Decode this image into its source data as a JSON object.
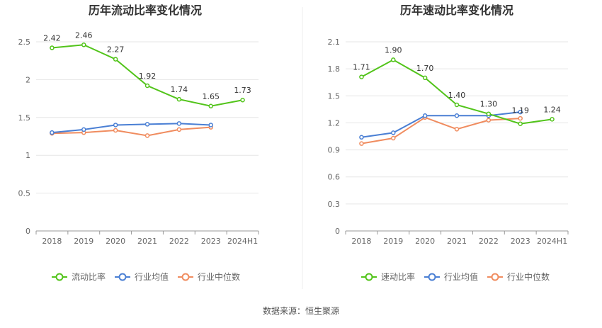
{
  "source_label": "数据来源：恒生聚源",
  "chart_data": [
    {
      "type": "line",
      "title": "历年流动比率变化情况",
      "categories": [
        "2018",
        "2019",
        "2020",
        "2021",
        "2022",
        "2023",
        "2024H1"
      ],
      "ylim": [
        0,
        2.5
      ],
      "yticks": [
        0,
        0.5,
        1,
        1.5,
        2,
        2.5
      ],
      "ytick_labels": [
        "0",
        "0.5",
        "1",
        "1.5",
        "2",
        "2.5"
      ],
      "grid": true,
      "legend": "bottom",
      "series": [
        {
          "name": "流动比率",
          "color": "#52c41a",
          "values": [
            2.42,
            2.46,
            2.27,
            1.92,
            1.74,
            1.65,
            1.73
          ],
          "labels": [
            "2.42",
            "2.46",
            "2.27",
            "1.92",
            "1.74",
            "1.65",
            "1.73"
          ]
        },
        {
          "name": "行业均值",
          "color": "#4a7fd4",
          "values": [
            1.3,
            1.34,
            1.4,
            1.41,
            1.42,
            1.4,
            null
          ]
        },
        {
          "name": "行业中位数",
          "color": "#f08c5f",
          "values": [
            1.29,
            1.3,
            1.33,
            1.26,
            1.34,
            1.37,
            null
          ]
        }
      ]
    },
    {
      "type": "line",
      "title": "历年速动比率变化情况",
      "categories": [
        "2018",
        "2019",
        "2020",
        "2021",
        "2022",
        "2023",
        "2024H1"
      ],
      "ylim": [
        0,
        2.1
      ],
      "yticks": [
        0,
        0.3,
        0.6,
        0.9,
        1.2,
        1.5,
        1.8,
        2.1
      ],
      "ytick_labels": [
        "0",
        "0.3",
        "0.6",
        "0.9",
        "1.2",
        "1.5",
        "1.8",
        "2.1"
      ],
      "grid": true,
      "legend": "bottom",
      "series": [
        {
          "name": "速动比率",
          "color": "#52c41a",
          "values": [
            1.71,
            1.9,
            1.7,
            1.4,
            1.3,
            1.19,
            1.24
          ],
          "labels": [
            "1.71",
            "1.90",
            "1.70",
            "1.40",
            "1.30",
            "1.19",
            "1.24"
          ]
        },
        {
          "name": "行业均值",
          "color": "#4a7fd4",
          "values": [
            1.04,
            1.09,
            1.28,
            1.28,
            1.28,
            1.32,
            null
          ]
        },
        {
          "name": "行业中位数",
          "color": "#f08c5f",
          "values": [
            0.97,
            1.03,
            1.26,
            1.13,
            1.23,
            1.25,
            null
          ]
        }
      ]
    }
  ]
}
